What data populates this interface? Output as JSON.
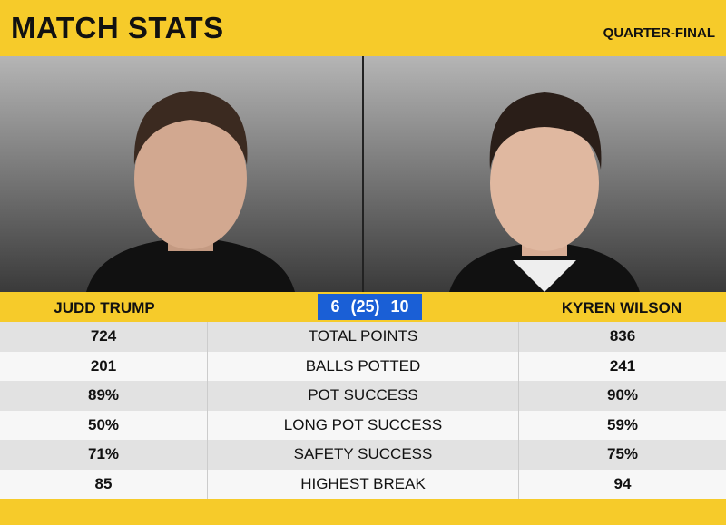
{
  "header": {
    "title": "MATCH STATS",
    "stage": "QUARTER-FINAL"
  },
  "players": [
    "JUDD TRUMP",
    "KYREN WILSON"
  ],
  "score": {
    "left": 6,
    "frames": "(25)",
    "right": 10
  },
  "table": {
    "rows": [
      [
        "724",
        "TOTAL POINTS",
        "836"
      ],
      [
        "201",
        "BALLS POTTED",
        "241"
      ],
      [
        "89%",
        "POT SUCCESS",
        "90%"
      ],
      [
        "50%",
        "LONG POT SUCCESS",
        "59%"
      ],
      [
        "71%",
        "SAFETY SUCCESS",
        "75%"
      ],
      [
        "85",
        "HIGHEST BREAK",
        "94"
      ]
    ]
  }
}
